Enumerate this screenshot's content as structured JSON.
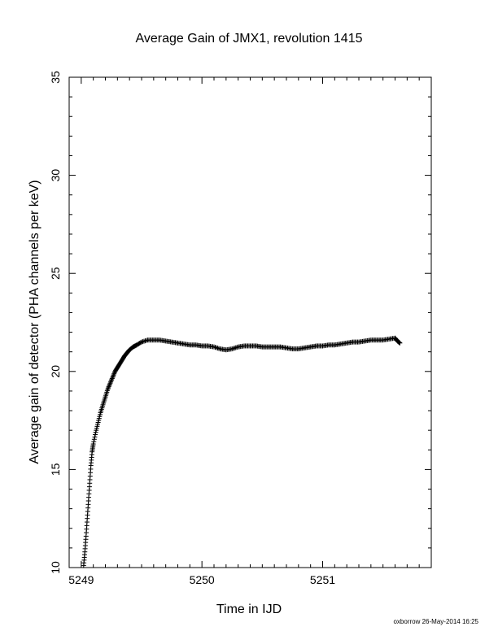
{
  "chart_data": {
    "type": "scatter",
    "title": "Average Gain of JMX1, revolution 1415",
    "xlabel": "Time in IJD",
    "ylabel": "Average gain of detector (PHA channels per keV)",
    "xlim": [
      5248.9,
      5251.9
    ],
    "ylim": [
      10,
      35
    ],
    "xticks": [
      5249,
      5250,
      5251
    ],
    "yticks": [
      10,
      15,
      20,
      25,
      30,
      35
    ],
    "xtick_labels": [
      "5249",
      "5250",
      "5251"
    ],
    "ytick_labels": [
      "10",
      "15",
      "20",
      "25",
      "30",
      "35"
    ],
    "grid": false,
    "marker": "plus",
    "series": [
      {
        "x": [
          5249.02,
          5249.03,
          5249.04,
          5249.05,
          5249.06,
          5249.07,
          5249.08,
          5249.09,
          5249.1,
          5249.12,
          5249.14,
          5249.16,
          5249.18,
          5249.2,
          5249.22,
          5249.24,
          5249.26,
          5249.28,
          5249.3,
          5249.32,
          5249.34,
          5249.36,
          5249.38,
          5249.4,
          5249.43,
          5249.46,
          5249.5,
          5249.55,
          5249.6,
          5249.65,
          5249.7,
          5249.75,
          5249.8,
          5249.85,
          5249.9,
          5249.95,
          5250.0,
          5250.05,
          5250.1,
          5250.15,
          5250.2,
          5250.25,
          5250.3,
          5250.35,
          5250.4,
          5250.45,
          5250.5,
          5250.55,
          5250.6,
          5250.65,
          5250.7,
          5250.75,
          5250.8,
          5250.85,
          5250.9,
          5250.95,
          5251.0,
          5251.05,
          5251.1,
          5251.15,
          5251.2,
          5251.25,
          5251.3,
          5251.35,
          5251.4,
          5251.45,
          5251.5,
          5251.55,
          5251.6,
          5251.62,
          5251.64
        ],
        "y": [
          10.1,
          10.8,
          11.6,
          12.5,
          13.4,
          14.3,
          15.2,
          15.9,
          16.3,
          16.9,
          17.4,
          17.9,
          18.3,
          18.7,
          19.1,
          19.4,
          19.7,
          20.0,
          20.2,
          20.4,
          20.6,
          20.8,
          20.95,
          21.1,
          21.25,
          21.35,
          21.5,
          21.6,
          21.6,
          21.6,
          21.55,
          21.5,
          21.45,
          21.4,
          21.35,
          21.35,
          21.3,
          21.3,
          21.25,
          21.15,
          21.1,
          21.15,
          21.25,
          21.3,
          21.3,
          21.3,
          21.25,
          21.25,
          21.25,
          21.25,
          21.2,
          21.15,
          21.15,
          21.2,
          21.25,
          21.3,
          21.3,
          21.35,
          21.35,
          21.4,
          21.45,
          21.5,
          21.5,
          21.55,
          21.6,
          21.6,
          21.6,
          21.65,
          21.7,
          21.55,
          21.45
        ]
      }
    ]
  },
  "footer": "oxborrow 26-May-2014 16:25"
}
